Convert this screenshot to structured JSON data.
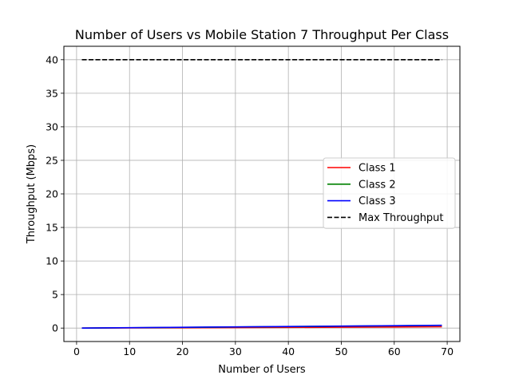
{
  "chart_data": {
    "type": "line",
    "title": "Number of Users vs Mobile Station 7 Throughput Per Class",
    "xlabel": "Number of Users",
    "ylabel": "Throughput (Mbps)",
    "xlim": [
      -2.4,
      72.4
    ],
    "ylim": [
      -2,
      42
    ],
    "xticks": [
      0,
      10,
      20,
      30,
      40,
      50,
      60,
      70
    ],
    "yticks": [
      0,
      5,
      10,
      15,
      20,
      25,
      30,
      35,
      40
    ],
    "grid": true,
    "legend_position": "center-right",
    "series": [
      {
        "name": "Class 1",
        "color": "#ff0000",
        "style": "solid",
        "x": [
          1,
          10,
          20,
          30,
          40,
          50,
          60,
          69
        ],
        "y": [
          0.0,
          0.02,
          0.04,
          0.07,
          0.1,
          0.13,
          0.16,
          0.2
        ]
      },
      {
        "name": "Class 2",
        "color": "#008000",
        "style": "solid",
        "x": [
          1,
          10,
          20,
          30,
          40,
          50,
          60,
          69
        ],
        "y": [
          0.0,
          0.05,
          0.1,
          0.16,
          0.22,
          0.28,
          0.34,
          0.4
        ]
      },
      {
        "name": "Class 3",
        "color": "#0000ff",
        "style": "solid",
        "x": [
          1,
          10,
          20,
          30,
          40,
          50,
          60,
          69
        ],
        "y": [
          0.0,
          0.06,
          0.12,
          0.18,
          0.24,
          0.3,
          0.36,
          0.42
        ]
      },
      {
        "name": "Max Throughput",
        "color": "#000000",
        "style": "dashed",
        "x": [
          1,
          69
        ],
        "y": [
          40,
          40
        ]
      }
    ]
  }
}
